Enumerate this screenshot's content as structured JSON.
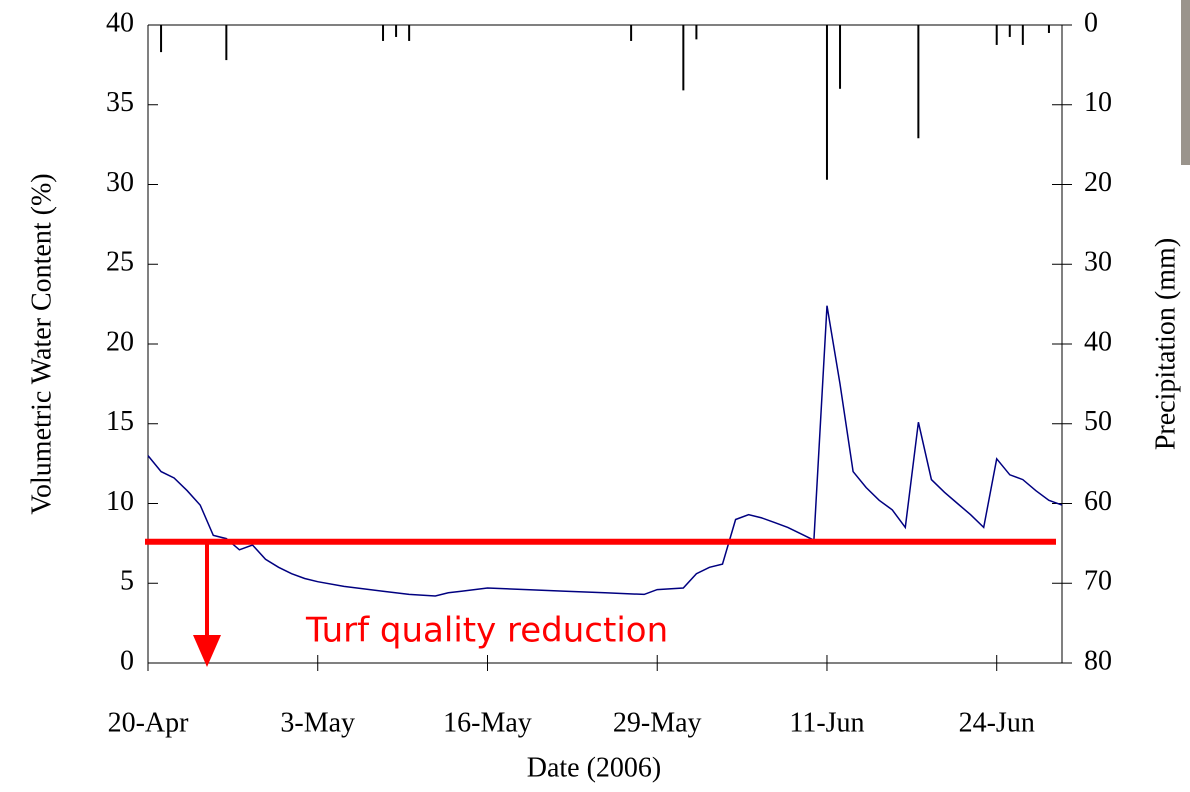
{
  "chart_data": {
    "type": "line",
    "xlabel": "Date (2006)",
    "ylabel": "Volumetric Water Content (%)",
    "y2label": "Precipitation (mm)",
    "xlim": [
      "2006-04-20",
      "2006-06-29"
    ],
    "xticks": [
      {
        "value": "2006-04-20",
        "label": "20-Apr"
      },
      {
        "value": "2006-05-03",
        "label": "3-May"
      },
      {
        "value": "2006-05-16",
        "label": "16-May"
      },
      {
        "value": "2006-05-29",
        "label": "29-May"
      },
      {
        "value": "2006-06-11",
        "label": "11-Jun"
      },
      {
        "value": "2006-06-24",
        "label": "24-Jun"
      }
    ],
    "ylim": [
      0,
      40
    ],
    "yticks": [
      0,
      5,
      10,
      15,
      20,
      25,
      30,
      35,
      40
    ],
    "y2lim": [
      80,
      0
    ],
    "y2ticks": [
      0,
      10,
      20,
      30,
      40,
      50,
      60,
      70,
      80
    ],
    "series": [
      {
        "type": "line",
        "color": "#000080",
        "x": [
          "2006-04-20",
          "2006-04-21",
          "2006-04-22",
          "2006-04-23",
          "2006-04-24",
          "2006-04-25",
          "2006-04-26",
          "2006-04-27",
          "2006-04-28",
          "2006-04-29",
          "2006-04-30",
          "2006-05-01",
          "2006-05-02",
          "2006-05-03",
          "2006-05-05",
          "2006-05-08",
          "2006-05-10",
          "2006-05-12",
          "2006-05-13",
          "2006-05-14",
          "2006-05-16",
          "2006-05-19",
          "2006-05-22",
          "2006-05-25",
          "2006-05-28",
          "2006-05-29",
          "2006-05-31",
          "2006-06-01",
          "2006-06-02",
          "2006-06-03",
          "2006-06-04",
          "2006-06-05",
          "2006-06-06",
          "2006-06-07",
          "2006-06-08",
          "2006-06-09",
          "2006-06-10",
          "2006-06-11",
          "2006-06-12",
          "2006-06-13",
          "2006-06-14",
          "2006-06-15",
          "2006-06-16",
          "2006-06-17",
          "2006-06-18",
          "2006-06-19",
          "2006-06-20",
          "2006-06-21",
          "2006-06-22",
          "2006-06-23",
          "2006-06-24",
          "2006-06-25",
          "2006-06-26",
          "2006-06-27",
          "2006-06-28",
          "2006-06-29"
        ],
        "values": [
          13.0,
          12.0,
          11.6,
          10.8,
          9.9,
          8.0,
          7.8,
          7.1,
          7.4,
          6.5,
          6.0,
          5.6,
          5.3,
          5.1,
          4.8,
          4.5,
          4.3,
          4.2,
          4.4,
          4.5,
          4.7,
          4.6,
          4.5,
          4.4,
          4.3,
          4.6,
          4.7,
          5.6,
          6.0,
          6.2,
          9.0,
          9.3,
          9.1,
          8.8,
          8.5,
          8.1,
          7.7,
          22.4,
          17.5,
          12.0,
          11.0,
          10.2,
          9.6,
          8.5,
          15.1,
          11.5,
          10.7,
          10.0,
          9.3,
          8.5,
          12.8,
          11.8,
          11.5,
          10.8,
          10.2,
          9.9
        ]
      },
      {
        "type": "bar",
        "axis": "y2",
        "color": "#000000",
        "x": [
          "2006-04-21",
          "2006-04-26",
          "2006-05-08",
          "2006-05-09",
          "2006-05-10",
          "2006-05-27",
          "2006-05-31",
          "2006-06-01",
          "2006-06-11",
          "2006-06-12",
          "2006-06-18",
          "2006-06-24",
          "2006-06-25",
          "2006-06-26",
          "2006-06-28"
        ],
        "values": [
          3.4,
          4.4,
          2.0,
          1.5,
          2.0,
          2.0,
          8.2,
          1.8,
          19.4,
          8.0,
          14.2,
          2.5,
          1.5,
          2.5,
          1.0
        ]
      }
    ],
    "annotation": {
      "text": "Turf quality reduction",
      "threshold": 7.6,
      "color": "#ff0000"
    }
  }
}
